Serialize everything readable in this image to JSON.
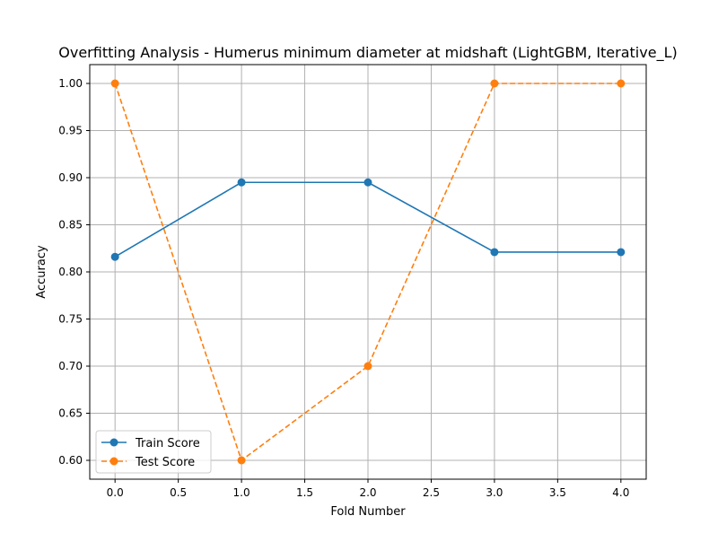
{
  "chart_data": {
    "type": "line",
    "title": "Overfitting Analysis - Humerus minimum diameter at midshaft (LightGBM, Iterative_L)",
    "xlabel": "Fold Number",
    "ylabel": "Accuracy",
    "xlim": [
      -0.2,
      4.2
    ],
    "ylim": [
      0.58,
      1.02
    ],
    "xticks": [
      0.0,
      0.5,
      1.0,
      1.5,
      2.0,
      2.5,
      3.0,
      3.5,
      4.0
    ],
    "xtick_labels": [
      "0.0",
      "0.5",
      "1.0",
      "1.5",
      "2.0",
      "2.5",
      "3.0",
      "3.5",
      "4.0"
    ],
    "yticks": [
      0.6,
      0.65,
      0.7,
      0.75,
      0.8,
      0.85,
      0.9,
      0.95,
      1.0
    ],
    "ytick_labels": [
      "0.60",
      "0.65",
      "0.70",
      "0.75",
      "0.80",
      "0.85",
      "0.90",
      "0.95",
      "1.00"
    ],
    "grid": true,
    "legend_position": "bottom-left",
    "x": [
      0,
      1,
      2,
      3,
      4
    ],
    "series": [
      {
        "name": "Train Score",
        "values": [
          0.816,
          0.895,
          0.895,
          0.821,
          0.821
        ],
        "color": "#1f77b4",
        "line_style": "solid",
        "marker": "circle"
      },
      {
        "name": "Test Score",
        "values": [
          1.0,
          0.6,
          0.7,
          1.0,
          1.0
        ],
        "color": "#ff7f0e",
        "line_style": "dashed",
        "marker": "circle"
      }
    ]
  }
}
